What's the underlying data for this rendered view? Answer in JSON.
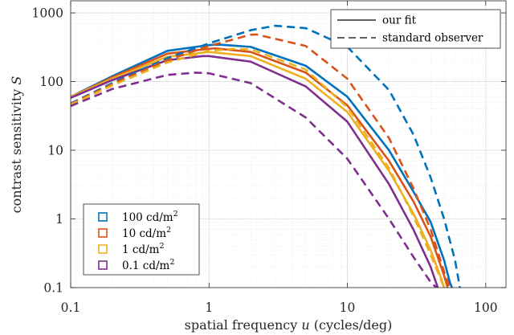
{
  "chart_data": {
    "type": "line",
    "xscale": "log",
    "yscale": "log",
    "xlim": [
      0.1,
      140
    ],
    "ylim": [
      0.1,
      1500
    ],
    "grid": true,
    "minor_grid": true,
    "xlabel_parts": [
      "spatial frequency ",
      "u",
      " (cycles/deg)"
    ],
    "ylabel_parts": [
      "contrast sensitivity ",
      "S"
    ],
    "x_ticks": [
      {
        "value": 0.1,
        "label": "0.1"
      },
      {
        "value": 1,
        "label": "1"
      },
      {
        "value": 10,
        "label": "10"
      },
      {
        "value": 100,
        "label": "100"
      }
    ],
    "y_ticks": [
      {
        "value": 0.1,
        "label": "0.1"
      },
      {
        "value": 1,
        "label": "1"
      },
      {
        "value": 10,
        "label": "10"
      },
      {
        "value": 100,
        "label": "100"
      },
      {
        "value": 1000,
        "label": "1000"
      }
    ],
    "style_legend": {
      "placement": "top-right",
      "entries": [
        {
          "label": "our fit",
          "dash": "solid"
        },
        {
          "label": "standard observer",
          "dash": "dashed"
        }
      ]
    },
    "color_legend": {
      "placement": "bottom-left",
      "entries": [
        {
          "value": "100 cd/m",
          "sup": "2",
          "color": "#0072BD"
        },
        {
          "value": "10 cd/m",
          "sup": "2",
          "color": "#D95319"
        },
        {
          "value": "1 cd/m",
          "sup": "2",
          "color": "#EDB120"
        },
        {
          "value": "0.1 cd/m",
          "sup": "2",
          "color": "#7E2F8E"
        }
      ]
    },
    "series": [
      {
        "luminance": "100 cd/m2",
        "style": "our fit",
        "color": "#0072BD",
        "dash": "solid",
        "x": [
          0.1,
          0.2,
          0.5,
          1.0,
          1.2,
          2.0,
          5.0,
          10.0,
          20.0,
          30.0,
          40.0,
          50.0,
          55.0,
          57.0
        ],
        "y": [
          60,
          120,
          280,
          340,
          345,
          320,
          170,
          60,
          10,
          2.5,
          0.9,
          0.25,
          0.12,
          0.1
        ]
      },
      {
        "luminance": "10 cd/m2",
        "style": "our fit",
        "color": "#D95319",
        "dash": "solid",
        "x": [
          0.1,
          0.2,
          0.5,
          1.0,
          1.1,
          2.0,
          5.0,
          10.0,
          20.0,
          30.0,
          40.0,
          50.0,
          53.0
        ],
        "y": [
          60,
          115,
          255,
          300,
          305,
          270,
          135,
          45,
          7,
          1.8,
          0.55,
          0.15,
          0.1
        ]
      },
      {
        "luminance": "1 cd/m2",
        "style": "our fit",
        "color": "#EDB120",
        "dash": "solid",
        "x": [
          0.1,
          0.2,
          0.5,
          1.0,
          2.0,
          5.0,
          10.0,
          20.0,
          30.0,
          40.0,
          48.0,
          50.0
        ],
        "y": [
          60,
          110,
          230,
          270,
          235,
          110,
          36,
          5,
          1.2,
          0.35,
          0.13,
          0.1
        ]
      },
      {
        "luminance": "0.1 cd/m2",
        "style": "our fit",
        "color": "#7E2F8E",
        "dash": "solid",
        "x": [
          0.1,
          0.2,
          0.5,
          0.9,
          1.0,
          2.0,
          5.0,
          10.0,
          20.0,
          30.0,
          40.0,
          45.0
        ],
        "y": [
          58,
          105,
          205,
          235,
          235,
          195,
          85,
          26,
          3.2,
          0.7,
          0.2,
          0.1
        ]
      },
      {
        "luminance": "100 cd/m2",
        "style": "standard observer",
        "color": "#0072BD",
        "dash": "dashed",
        "x": [
          0.1,
          0.2,
          0.5,
          1.0,
          2.0,
          3.0,
          5.0,
          10.0,
          20.0,
          30.0,
          40.0,
          50.0,
          60.0,
          65.0
        ],
        "y": [
          48,
          95,
          220,
          360,
          560,
          650,
          600,
          320,
          75,
          17,
          4,
          1,
          0.25,
          0.1
        ]
      },
      {
        "luminance": "10 cd/m2",
        "style": "standard observer",
        "color": "#D95319",
        "dash": "dashed",
        "x": [
          0.1,
          0.2,
          0.5,
          1.0,
          2.0,
          2.2,
          5.0,
          10.0,
          20.0,
          30.0,
          40.0,
          50.0,
          55.0
        ],
        "y": [
          47,
          92,
          205,
          330,
          480,
          485,
          330,
          110,
          15,
          2.8,
          0.7,
          0.17,
          0.1
        ]
      },
      {
        "luminance": "1 cd/m2",
        "style": "standard observer",
        "color": "#EDB120",
        "dash": "dashed",
        "x": [
          0.1,
          0.2,
          0.5,
          1.0,
          1.5,
          2.0,
          5.0,
          10.0,
          20.0,
          30.0,
          40.0,
          50.0
        ],
        "y": [
          46,
          88,
          190,
          280,
          300,
          295,
          150,
          42,
          5.5,
          1.1,
          0.3,
          0.1
        ]
      },
      {
        "luminance": "0.1 cd/m2",
        "style": "standard observer",
        "color": "#7E2F8E",
        "dash": "dashed",
        "x": [
          0.1,
          0.2,
          0.5,
          0.8,
          1.0,
          2.0,
          5.0,
          10.0,
          20.0,
          30.0,
          40.0,
          44.0
        ],
        "y": [
          44,
          78,
          125,
          135,
          132,
          95,
          30,
          7.5,
          1.0,
          0.28,
          0.12,
          0.1
        ]
      }
    ]
  }
}
